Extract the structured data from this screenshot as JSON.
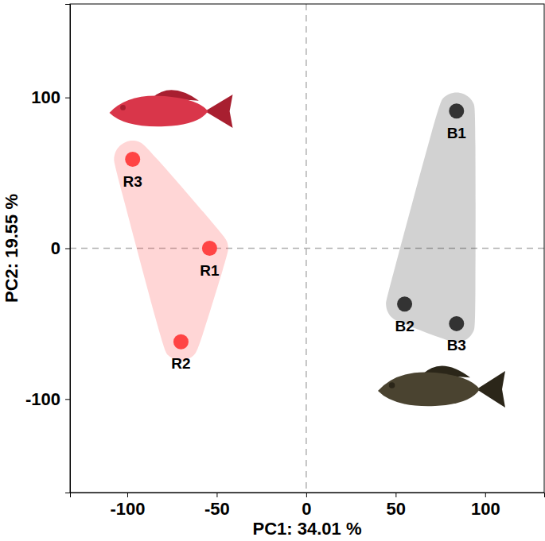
{
  "chart_data": {
    "type": "scatter",
    "x_label": "PC1: 34.01 %",
    "y_label": "PC2: 19.55 %",
    "xlim": [
      -132,
      133
    ],
    "ylim": [
      -162,
      162
    ],
    "xticks": [
      -100,
      -50,
      0,
      50,
      100
    ],
    "yticks": [
      -100,
      0,
      100
    ],
    "hlines": [
      0
    ],
    "vlines": [
      0
    ],
    "grid": false,
    "series": [
      {
        "color": "#ff4444",
        "marker": "circle",
        "labels": [
          "R1",
          "R2",
          "R3"
        ],
        "x": [
          -54,
          -70,
          -97
        ],
        "values": [
          0,
          -62,
          59
        ]
      },
      {
        "color": "#333333",
        "marker": "circle",
        "labels": [
          "B1",
          "B2",
          "B3"
        ],
        "x": [
          84,
          55,
          84
        ],
        "values": [
          91,
          -37,
          -50
        ]
      }
    ]
  }
}
